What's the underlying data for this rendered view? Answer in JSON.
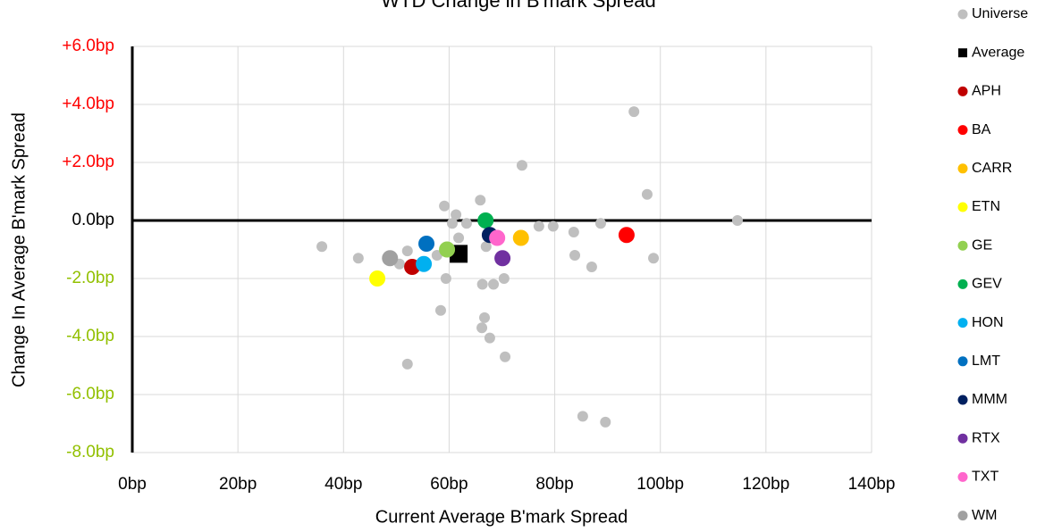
{
  "chart_data": {
    "type": "scatter",
    "title": "WTD Change in B'mark Spread",
    "x_label": "Current Average B'mark Spread",
    "y_label": "Change In Average B'mark Spread",
    "xlim": [
      0,
      140
    ],
    "xticks": [
      {
        "value": 0,
        "label": "0bp"
      },
      {
        "value": 20,
        "label": "20bp"
      },
      {
        "value": 40,
        "label": "40bp"
      },
      {
        "value": 60,
        "label": "60bp"
      },
      {
        "value": 80,
        "label": "80bp"
      },
      {
        "value": 100,
        "label": "100bp"
      },
      {
        "value": 120,
        "label": "120bp"
      },
      {
        "value": 140,
        "label": "140bp"
      }
    ],
    "ylim": [
      -8,
      6
    ],
    "yticks": [
      {
        "value": 6,
        "label": "+6.0bp"
      },
      {
        "value": 4,
        "label": "+4.0bp"
      },
      {
        "value": 2,
        "label": "+2.0bp"
      },
      {
        "value": 0,
        "label": "0.0bp"
      },
      {
        "value": -2,
        "label": "-2.0bp"
      },
      {
        "value": -4,
        "label": "-4.0bp"
      },
      {
        "value": -6,
        "label": "-6.0bp"
      },
      {
        "value": -8,
        "label": "-8.0bp"
      }
    ],
    "ytick_colors": {
      "positive": "#ff0000",
      "zero": "#000000",
      "negative": "#92c000"
    },
    "grid": true,
    "legend": "right",
    "series": [
      {
        "name": "Universe",
        "color": "#bfbfbf",
        "marker": "circle",
        "size": 6,
        "x": [
          35.9,
          42.8,
          50.6,
          52.1,
          52.1,
          59.1,
          61.3,
          60.6,
          63.3,
          61.8,
          57.7,
          59.4,
          58.4,
          65.9,
          73.8,
          67.0,
          66.3,
          68.4,
          70.4,
          66.7,
          66.2,
          67.7,
          70.6,
          77.0,
          79.7,
          83.6,
          83.8,
          87.0,
          88.7,
          85.3,
          89.6,
          95.0,
          97.5,
          98.7,
          114.6
        ],
        "values": [
          -0.9,
          -1.3,
          -1.5,
          -1.05,
          -4.95,
          0.5,
          0.2,
          -0.1,
          -0.1,
          -0.6,
          -1.2,
          -2.0,
          -3.1,
          0.7,
          1.9,
          -0.9,
          -2.2,
          -2.2,
          -2.0,
          -3.35,
          -3.7,
          -4.05,
          -4.7,
          -0.2,
          -0.2,
          -0.4,
          -1.2,
          -1.6,
          -0.1,
          -6.75,
          -6.95,
          3.75,
          0.9,
          -1.3,
          0.0
        ]
      },
      {
        "name": "Average",
        "color": "#000000",
        "marker": "square",
        "size": 10,
        "x": [
          61.8
        ],
        "values": [
          -1.15
        ]
      },
      {
        "name": "APH",
        "color": "#c00000",
        "marker": "circle",
        "size": 9,
        "x": [
          53.0
        ],
        "values": [
          -1.6
        ]
      },
      {
        "name": "BA",
        "color": "#ff0000",
        "marker": "circle",
        "size": 9,
        "x": [
          93.6
        ],
        "values": [
          -0.5
        ]
      },
      {
        "name": "CARR",
        "color": "#ffc000",
        "marker": "circle",
        "size": 9,
        "x": [
          73.6
        ],
        "values": [
          -0.6
        ]
      },
      {
        "name": "ETN",
        "color": "#ffff00",
        "marker": "circle",
        "size": 9,
        "x": [
          46.4
        ],
        "values": [
          -2.0
        ]
      },
      {
        "name": "GE",
        "color": "#92d050",
        "marker": "circle",
        "size": 9,
        "x": [
          59.6
        ],
        "values": [
          -1.0
        ]
      },
      {
        "name": "GEV",
        "color": "#00b050",
        "marker": "circle",
        "size": 9,
        "x": [
          66.9
        ],
        "values": [
          0.0
        ]
      },
      {
        "name": "HON",
        "color": "#00b0f0",
        "marker": "circle",
        "size": 9,
        "x": [
          55.2
        ],
        "values": [
          -1.5
        ]
      },
      {
        "name": "LMT",
        "color": "#0070c0",
        "marker": "circle",
        "size": 9,
        "x": [
          55.7
        ],
        "values": [
          -0.8
        ]
      },
      {
        "name": "MMM",
        "color": "#002060",
        "marker": "circle",
        "size": 9,
        "x": [
          67.7
        ],
        "values": [
          -0.5
        ]
      },
      {
        "name": "RTX",
        "color": "#7030a0",
        "marker": "circle",
        "size": 9,
        "x": [
          70.1
        ],
        "values": [
          -1.3
        ]
      },
      {
        "name": "TXT",
        "color": "#ff66cc",
        "marker": "circle",
        "size": 9,
        "x": [
          69.1
        ],
        "values": [
          -0.6
        ]
      },
      {
        "name": "WM",
        "color": "#a0a0a0",
        "marker": "circle",
        "size": 9,
        "x": [
          48.8
        ],
        "values": [
          -1.3
        ]
      }
    ]
  }
}
